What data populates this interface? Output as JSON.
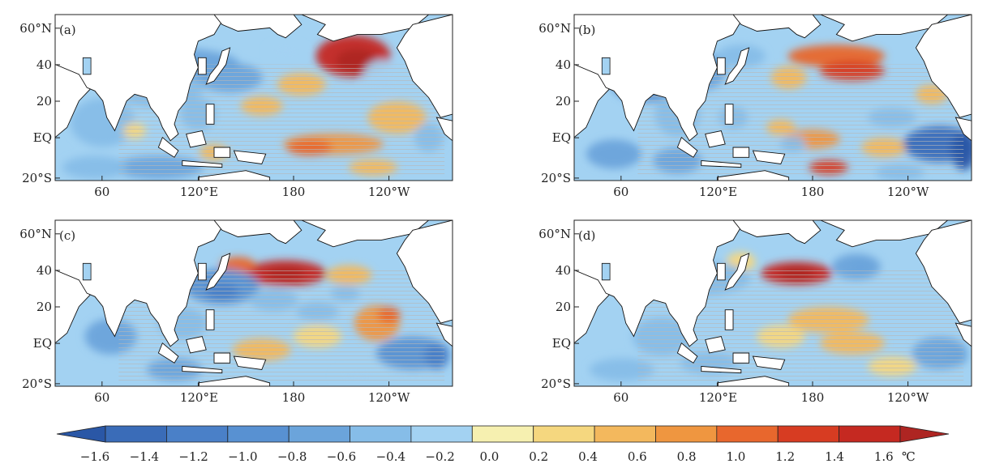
{
  "panels": [
    {
      "tag": "(a)",
      "hotspots": [
        [
          0.75,
          0.25,
          46,
          26,
          1.2
        ],
        [
          0.76,
          0.28,
          26,
          15,
          1.45
        ],
        [
          0.62,
          0.42,
          30,
          14,
          0.4
        ],
        [
          0.52,
          0.55,
          26,
          12,
          0.3
        ],
        [
          0.7,
          0.78,
          62,
          13,
          0.5
        ],
        [
          0.64,
          0.8,
          28,
          10,
          0.65
        ],
        [
          0.86,
          0.62,
          36,
          20,
          0.3
        ],
        [
          0.8,
          0.92,
          30,
          10,
          0.3
        ],
        [
          0.3,
          0.3,
          80,
          20,
          -0.6
        ],
        [
          0.44,
          0.38,
          40,
          18,
          -0.7
        ],
        [
          0.26,
          0.45,
          55,
          22,
          -0.5
        ],
        [
          0.12,
          0.65,
          40,
          30,
          -0.4
        ],
        [
          0.26,
          0.92,
          55,
          14,
          -0.7
        ],
        [
          0.1,
          0.92,
          40,
          14,
          -0.5
        ],
        [
          0.36,
          0.6,
          22,
          20,
          -0.5
        ],
        [
          0.82,
          0.38,
          22,
          22,
          -0.3
        ],
        [
          0.94,
          0.74,
          18,
          18,
          -0.5
        ],
        [
          0.58,
          0.22,
          22,
          10,
          -0.3
        ],
        [
          0.4,
          0.83,
          18,
          10,
          0.4
        ],
        [
          0.2,
          0.7,
          14,
          10,
          0.2
        ]
      ]
    },
    {
      "tag": "(b)",
      "hotspots": [
        [
          0.66,
          0.25,
          60,
          14,
          0.7
        ],
        [
          0.7,
          0.34,
          40,
          12,
          0.8
        ],
        [
          0.54,
          0.38,
          22,
          14,
          0.4
        ],
        [
          0.9,
          0.48,
          20,
          12,
          0.25
        ],
        [
          0.6,
          0.75,
          34,
          12,
          0.55
        ],
        [
          0.64,
          0.92,
          24,
          9,
          0.8
        ],
        [
          0.78,
          0.8,
          28,
          12,
          0.3
        ],
        [
          0.52,
          0.68,
          18,
          10,
          0.3
        ],
        [
          0.18,
          0.4,
          44,
          26,
          -0.8
        ],
        [
          0.32,
          0.34,
          30,
          24,
          -0.7
        ],
        [
          0.26,
          0.6,
          28,
          28,
          -0.45
        ],
        [
          0.1,
          0.84,
          34,
          18,
          -0.7
        ],
        [
          0.26,
          0.88,
          30,
          16,
          -0.75
        ],
        [
          0.42,
          0.25,
          30,
          14,
          -0.4
        ],
        [
          0.92,
          0.78,
          45,
          22,
          -1.2
        ],
        [
          0.98,
          0.82,
          15,
          24,
          -1.45
        ],
        [
          0.8,
          0.62,
          30,
          12,
          -0.5
        ],
        [
          0.82,
          0.95,
          30,
          10,
          -0.4
        ],
        [
          0.4,
          0.62,
          18,
          14,
          -0.4
        ],
        [
          0.55,
          0.78,
          16,
          10,
          -0.4
        ]
      ]
    },
    {
      "tag": "(c)",
      "hotspots": [
        [
          0.58,
          0.32,
          50,
          16,
          1.1
        ],
        [
          0.58,
          0.32,
          24,
          8,
          1.3
        ],
        [
          0.46,
          0.27,
          22,
          10,
          0.6
        ],
        [
          0.74,
          0.33,
          28,
          12,
          0.4
        ],
        [
          0.81,
          0.62,
          28,
          22,
          0.5
        ],
        [
          0.84,
          0.57,
          14,
          10,
          0.6
        ],
        [
          0.52,
          0.78,
          36,
          14,
          0.3
        ],
        [
          0.66,
          0.7,
          30,
          14,
          0.2
        ],
        [
          0.42,
          0.4,
          46,
          22,
          -0.8
        ],
        [
          0.42,
          0.43,
          20,
          10,
          -1.0
        ],
        [
          0.55,
          0.48,
          30,
          14,
          -0.5
        ],
        [
          0.14,
          0.7,
          32,
          22,
          -0.6
        ],
        [
          0.32,
          0.62,
          30,
          20,
          -0.55
        ],
        [
          0.3,
          0.9,
          34,
          14,
          -0.6
        ],
        [
          0.9,
          0.8,
          45,
          20,
          -0.8
        ],
        [
          0.96,
          0.82,
          15,
          16,
          -1.15
        ],
        [
          0.66,
          0.55,
          26,
          12,
          -0.4
        ],
        [
          0.73,
          0.44,
          18,
          10,
          -0.4
        ],
        [
          0.76,
          0.94,
          28,
          10,
          -0.3
        ]
      ]
    },
    {
      "tag": "(d)",
      "hotspots": [
        [
          0.56,
          0.32,
          44,
          14,
          1.05
        ],
        [
          0.56,
          0.32,
          22,
          8,
          1.25
        ],
        [
          0.64,
          0.6,
          50,
          16,
          0.4
        ],
        [
          0.7,
          0.74,
          40,
          14,
          0.3
        ],
        [
          0.8,
          0.88,
          30,
          12,
          0.2
        ],
        [
          0.52,
          0.7,
          30,
          14,
          0.2
        ],
        [
          0.42,
          0.25,
          18,
          12,
          0.2
        ],
        [
          0.71,
          0.28,
          30,
          16,
          -0.6
        ],
        [
          0.72,
          0.28,
          14,
          8,
          -0.75
        ],
        [
          0.3,
          0.35,
          70,
          22,
          -0.45
        ],
        [
          0.22,
          0.7,
          36,
          24,
          -0.4
        ],
        [
          0.34,
          0.86,
          36,
          14,
          -0.5
        ],
        [
          0.12,
          0.9,
          40,
          14,
          -0.45
        ],
        [
          0.92,
          0.8,
          34,
          20,
          -0.6
        ],
        [
          0.96,
          0.82,
          14,
          12,
          -0.75
        ],
        [
          0.58,
          0.9,
          22,
          10,
          -0.25
        ]
      ]
    }
  ],
  "lat_ticks": [
    "60°N",
    "40",
    "20",
    "EQ",
    "20°S"
  ],
  "lon_ticks": [
    "60",
    "120°E",
    "180",
    "120°W"
  ],
  "colorbar": {
    "labels": [
      "−1.6",
      "−1.4",
      "−1.2",
      "−1.0",
      "−0.8",
      "−0.6",
      "−0.4",
      "−0.2",
      "0.0",
      "0.2",
      "0.4",
      "0.6",
      "0.8",
      "1.0",
      "1.2",
      "1.4",
      "1.6"
    ],
    "unit": "℃",
    "colors": [
      "#2a57a6",
      "#3a6cb8",
      "#4a80c8",
      "#5891d2",
      "#6ba4db",
      "#86bde8",
      "#a3d2f2",
      "#f6f0b0",
      "#f5d77f",
      "#f3b85d",
      "#ef9640",
      "#e8672d",
      "#d73c22",
      "#c52921",
      "#ae2522"
    ]
  }
}
